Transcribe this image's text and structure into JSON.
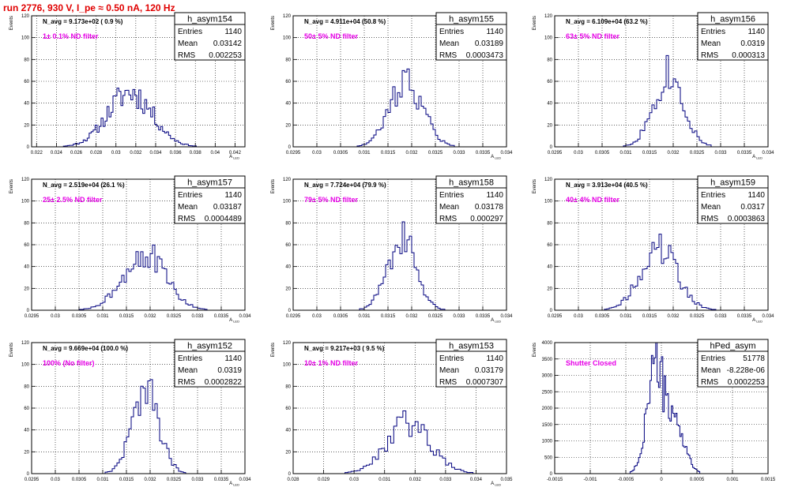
{
  "run_title": "run 2776,   930 V, I_pe ≈ 0.50 nA, 120 Hz",
  "stats_labels": {
    "entries": "Entries",
    "mean": "Mean",
    "rms": "RMS"
  },
  "colors": {
    "histogram": "#00007f",
    "filter_label": "#e600e6",
    "grid": "#000000",
    "frame": "#000000"
  },
  "chart_data": [
    {
      "type": "bar",
      "name": "h_asym154",
      "title": "h_asym154",
      "ylabel": "Events",
      "xlabel": "A_LED",
      "xlim": [
        0.0215,
        0.043
      ],
      "ylim": [
        0,
        120
      ],
      "xticks": [
        0.022,
        0.024,
        0.026,
        0.028,
        0.03,
        0.032,
        0.034,
        0.036,
        0.038,
        0.04,
        0.042
      ],
      "xtick_labels": [
        "0.022",
        "0.024",
        "0.026",
        "0.028",
        "0.03",
        "0.032",
        "0.034",
        "0.036",
        "0.038",
        "0.04",
        "0.042"
      ],
      "yticks": [
        0,
        20,
        40,
        60,
        80,
        100,
        120
      ],
      "navg": "N_avg = 9.173e+02 ( 0.9 %)",
      "filter": "1± 0.1% ND filter",
      "entries": "1140",
      "mean": "0.03142",
      "rms": "0.002253",
      "shape": {
        "mean": 0.03142,
        "sigma": 0.00225,
        "peak": 50,
        "bin": 0.0002,
        "seed": 11
      }
    },
    {
      "type": "bar",
      "name": "h_asym155",
      "title": "h_asym155",
      "ylabel": "Events",
      "xlabel": "A_LED",
      "xlim": [
        0.0295,
        0.034
      ],
      "ylim": [
        0,
        120
      ],
      "xticks": [
        0.0295,
        0.03,
        0.0305,
        0.031,
        0.0315,
        0.032,
        0.0325,
        0.033,
        0.0335,
        0.034
      ],
      "xtick_labels": [
        "0.0295",
        "0.03",
        "0.0305",
        "0.031",
        "0.0315",
        "0.032",
        "0.0325",
        "0.033",
        "0.0335",
        "0.034"
      ],
      "yticks": [
        0,
        20,
        40,
        60,
        80,
        100,
        120
      ],
      "navg": "N_avg = 4.911e+04 (50.8 %)",
      "filter": "50± 5% ND filter",
      "entries": "1140",
      "mean": "0.03189",
      "rms": "0.0003473",
      "shape": {
        "mean": 0.03189,
        "sigma": 0.000347,
        "peak": 60,
        "bin": 5e-05,
        "seed": 22
      }
    },
    {
      "type": "bar",
      "name": "h_asym156",
      "title": "h_asym156",
      "ylabel": "Events",
      "xlabel": "A_LED",
      "xlim": [
        0.0295,
        0.034
      ],
      "ylim": [
        0,
        120
      ],
      "xticks": [
        0.0295,
        0.03,
        0.0305,
        0.031,
        0.0315,
        0.032,
        0.0325,
        0.033,
        0.0335,
        0.034
      ],
      "xtick_labels": [
        "0.0295",
        "0.03",
        "0.0305",
        "0.031",
        "0.0315",
        "0.032",
        "0.0325",
        "0.033",
        "0.0335",
        "0.034"
      ],
      "yticks": [
        0,
        20,
        40,
        60,
        80,
        100,
        120
      ],
      "navg": "N_avg = 6.109e+04 (63.2 %)",
      "filter": "63± 5% ND filter",
      "entries": "1140",
      "mean": "0.0319",
      "rms": "0.000313",
      "shape": {
        "mean": 0.0319,
        "sigma": 0.000313,
        "peak": 68,
        "bin": 5e-05,
        "seed": 33
      }
    },
    {
      "type": "bar",
      "name": "h_asym157",
      "title": "h_asym157",
      "ylabel": "Events",
      "xlabel": "A_LED",
      "xlim": [
        0.0295,
        0.034
      ],
      "ylim": [
        0,
        120
      ],
      "xticks": [
        0.0295,
        0.03,
        0.0305,
        0.031,
        0.0315,
        0.032,
        0.0325,
        0.033,
        0.0335,
        0.034
      ],
      "xtick_labels": [
        "0.0295",
        "0.03",
        "0.0305",
        "0.031",
        "0.0315",
        "0.032",
        "0.0325",
        "0.033",
        "0.0335",
        "0.034"
      ],
      "yticks": [
        0,
        20,
        40,
        60,
        80,
        100,
        120
      ],
      "navg": "N_avg = 2.519e+04 (26.1 %)",
      "filter": "25± 2.5% ND filter",
      "entries": "1140",
      "mean": "0.03187",
      "rms": "0.0004489",
      "shape": {
        "mean": 0.03187,
        "sigma": 0.000449,
        "peak": 52,
        "bin": 5e-05,
        "seed": 44
      }
    },
    {
      "type": "bar",
      "name": "h_asym158",
      "title": "h_asym158",
      "ylabel": "Events",
      "xlabel": "A_LED",
      "xlim": [
        0.0295,
        0.034
      ],
      "ylim": [
        0,
        120
      ],
      "xticks": [
        0.0295,
        0.03,
        0.0305,
        0.031,
        0.0315,
        0.032,
        0.0325,
        0.033,
        0.0335,
        0.034
      ],
      "xtick_labels": [
        "0.0295",
        "0.03",
        "0.0305",
        "0.031",
        "0.0315",
        "0.032",
        "0.0325",
        "0.033",
        "0.0335",
        "0.034"
      ],
      "yticks": [
        0,
        20,
        40,
        60,
        80,
        100,
        120
      ],
      "navg": "N_avg = 7.724e+04 (79.9 %)",
      "filter": "79± 5% ND filter",
      "entries": "1140",
      "mean": "0.03178",
      "rms": "0.000297",
      "shape": {
        "mean": 0.03178,
        "sigma": 0.000297,
        "peak": 66,
        "bin": 5e-05,
        "seed": 55
      }
    },
    {
      "type": "bar",
      "name": "h_asym159",
      "title": "h_asym159",
      "ylabel": "Events",
      "xlabel": "A_LED",
      "xlim": [
        0.0295,
        0.034
      ],
      "ylim": [
        0,
        120
      ],
      "xticks": [
        0.0295,
        0.03,
        0.0305,
        0.031,
        0.0315,
        0.032,
        0.0325,
        0.033,
        0.0335,
        0.034
      ],
      "xtick_labels": [
        "0.0295",
        "0.03",
        "0.0305",
        "0.031",
        "0.0315",
        "0.032",
        "0.0325",
        "0.033",
        "0.0335",
        "0.034"
      ],
      "yticks": [
        0,
        20,
        40,
        60,
        80,
        100,
        120
      ],
      "navg": "N_avg = 3.913e+04 (40.5 %)",
      "filter": "40± 4% ND filter",
      "entries": "1140",
      "mean": "0.0317",
      "rms": "0.0003863",
      "shape": {
        "mean": 0.0317,
        "sigma": 0.000386,
        "peak": 56,
        "bin": 5e-05,
        "seed": 66
      }
    },
    {
      "type": "bar",
      "name": "h_asym152",
      "title": "h_asym152",
      "ylabel": "Events",
      "xlabel": "A_LED",
      "xlim": [
        0.0295,
        0.034
      ],
      "ylim": [
        0,
        120
      ],
      "xticks": [
        0.0295,
        0.03,
        0.0305,
        0.031,
        0.0315,
        0.032,
        0.0325,
        0.033,
        0.0335,
        0.034
      ],
      "xtick_labels": [
        "0.0295",
        "0.03",
        "0.0305",
        "0.031",
        "0.0315",
        "0.032",
        "0.0325",
        "0.033",
        "0.0335",
        "0.034"
      ],
      "yticks": [
        0,
        20,
        40,
        60,
        80,
        100,
        120
      ],
      "navg": "N_avg = 9.669e+04 (100.0 %)",
      "filter": "100% (No filter)",
      "entries": "1140",
      "mean": "0.0319",
      "rms": "0.0002822",
      "shape": {
        "mean": 0.0319,
        "sigma": 0.000282,
        "peak": 76,
        "bin": 5e-05,
        "seed": 77
      }
    },
    {
      "type": "bar",
      "name": "h_asym153",
      "title": "h_asym153",
      "ylabel": "Events",
      "xlabel": "A_LED",
      "xlim": [
        0.028,
        0.035
      ],
      "ylim": [
        0,
        120
      ],
      "xticks": [
        0.028,
        0.029,
        0.03,
        0.031,
        0.032,
        0.033,
        0.034,
        0.035
      ],
      "xtick_labels": [
        "0.028",
        "0.029",
        "0.03",
        "0.031",
        "0.032",
        "0.033",
        "0.034",
        "0.035"
      ],
      "yticks": [
        0,
        20,
        40,
        60,
        80,
        100,
        120
      ],
      "navg": "N_avg = 9.217e+03 ( 9.5 %)",
      "filter": "10± 1% ND filter",
      "entries": "1140",
      "mean": "0.03179",
      "rms": "0.0007307",
      "shape": {
        "mean": 0.03179,
        "sigma": 0.00073,
        "peak": 46,
        "bin": 0.0001,
        "seed": 88
      }
    },
    {
      "type": "bar",
      "name": "hPed_asym",
      "title": "hPed_asym",
      "ylabel": "Events",
      "xlabel": "",
      "xlim": [
        -0.0015,
        0.0015
      ],
      "ylim": [
        0,
        4000
      ],
      "xticks": [
        -0.0015,
        -0.001,
        -0.0005,
        0,
        0.0005,
        0.001,
        0.0015
      ],
      "xtick_labels": [
        "-0.0015",
        "-0.001",
        "-0.0005",
        "0",
        "0.0005",
        "0.001",
        "0.0015"
      ],
      "yticks": [
        0,
        500,
        1000,
        1500,
        2000,
        2500,
        3000,
        3500,
        4000
      ],
      "navg": "",
      "filter": "Shutter Closed",
      "entries": "51778",
      "mean": "-8.228e-06",
      "rms": "0.0002253",
      "shape": {
        "mean": -8e-05,
        "sigma": 0.00012,
        "peak": 3350,
        "bin": 2e-05,
        "seed": 99,
        "second": {
          "mean": 0.00022,
          "sigma": 0.00012,
          "peak": 1400
        }
      }
    }
  ]
}
